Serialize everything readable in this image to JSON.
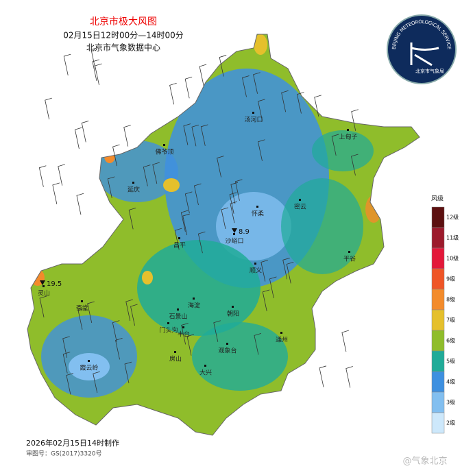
{
  "header": {
    "title": "北京市极大风图",
    "subtitle": "02月15日12时00分—14时00分",
    "source": "北京市气象数据中心"
  },
  "logo": {
    "ring_text": "BEIJING METEOROLOGICAL SERVICE",
    "name": "北京市气象局"
  },
  "places": [
    "汤河口",
    "上甸子",
    "佛爷顶",
    "延庆",
    "怀柔",
    "密云",
    "沙峪口",
    "昌平",
    "平谷",
    "顺义",
    "灵山",
    "斋堂",
    "海淀",
    "石景山",
    "朝阳",
    "门头沟",
    "丰台",
    "通州",
    "观象台",
    "房山",
    "大兴",
    "霞云岭"
  ],
  "stations": [
    {
      "value": 19.5
    },
    {
      "value": 8.9
    }
  ],
  "legend": {
    "title": "风级",
    "levels": [
      {
        "label": "12级",
        "color": "#5c1010"
      },
      {
        "label": "11级",
        "color": "#9c1a2c"
      },
      {
        "label": "10级",
        "color": "#e3183a"
      },
      {
        "label": "9级",
        "color": "#ef5526"
      },
      {
        "label": "8级",
        "color": "#f38b2b"
      },
      {
        "label": "7级",
        "color": "#e5c02c"
      },
      {
        "label": "6级",
        "color": "#8fbd2b"
      },
      {
        "label": "5级",
        "color": "#20ab98"
      },
      {
        "label": "4级",
        "color": "#3e90e0"
      },
      {
        "label": "3级",
        "color": "#82bff0"
      },
      {
        "label": "2级",
        "color": "#cde8fb"
      }
    ]
  },
  "footer": {
    "made": "2026年02月15日14时制作",
    "approval": "审图号：GS(2017)3320号"
  },
  "watermark": "@气象北京"
}
